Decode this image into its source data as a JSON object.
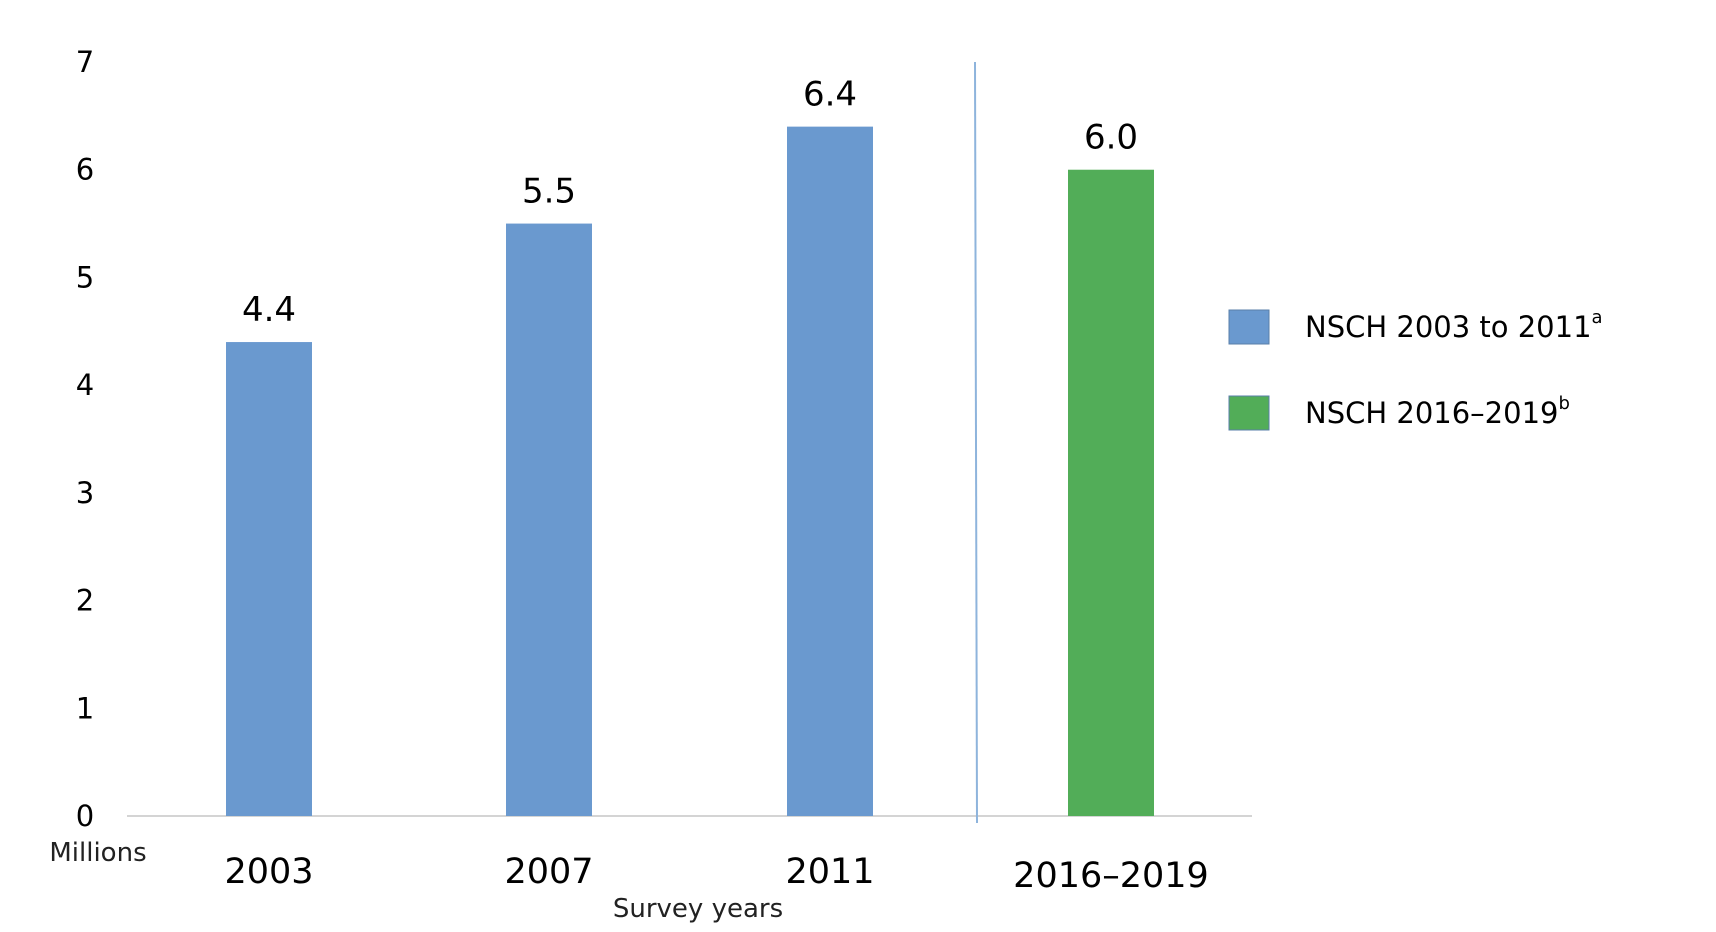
{
  "chart_data": {
    "type": "bar",
    "title": "",
    "xlabel": "Survey years",
    "ylabel": "Millions",
    "ylim": [
      0,
      7
    ],
    "yticks": [
      0,
      1,
      2,
      3,
      4,
      5,
      6,
      7
    ],
    "categories": [
      "2003",
      "2007",
      "2011",
      "2016–2019"
    ],
    "values": [
      4.4,
      5.5,
      6.4,
      6.0
    ],
    "data_labels": [
      "4.4",
      "5.5",
      "6.4",
      "6.0"
    ],
    "series_index": [
      0,
      0,
      0,
      1
    ],
    "series": [
      {
        "name": "NSCH 2003 to 2011",
        "superscript": "a",
        "color": "#6a99cf"
      },
      {
        "name": "NSCH 2016–2019",
        "superscript": "b",
        "color": "#52ad58"
      }
    ],
    "divider_after_category": "2011",
    "legend_position": "right",
    "grid": false
  }
}
